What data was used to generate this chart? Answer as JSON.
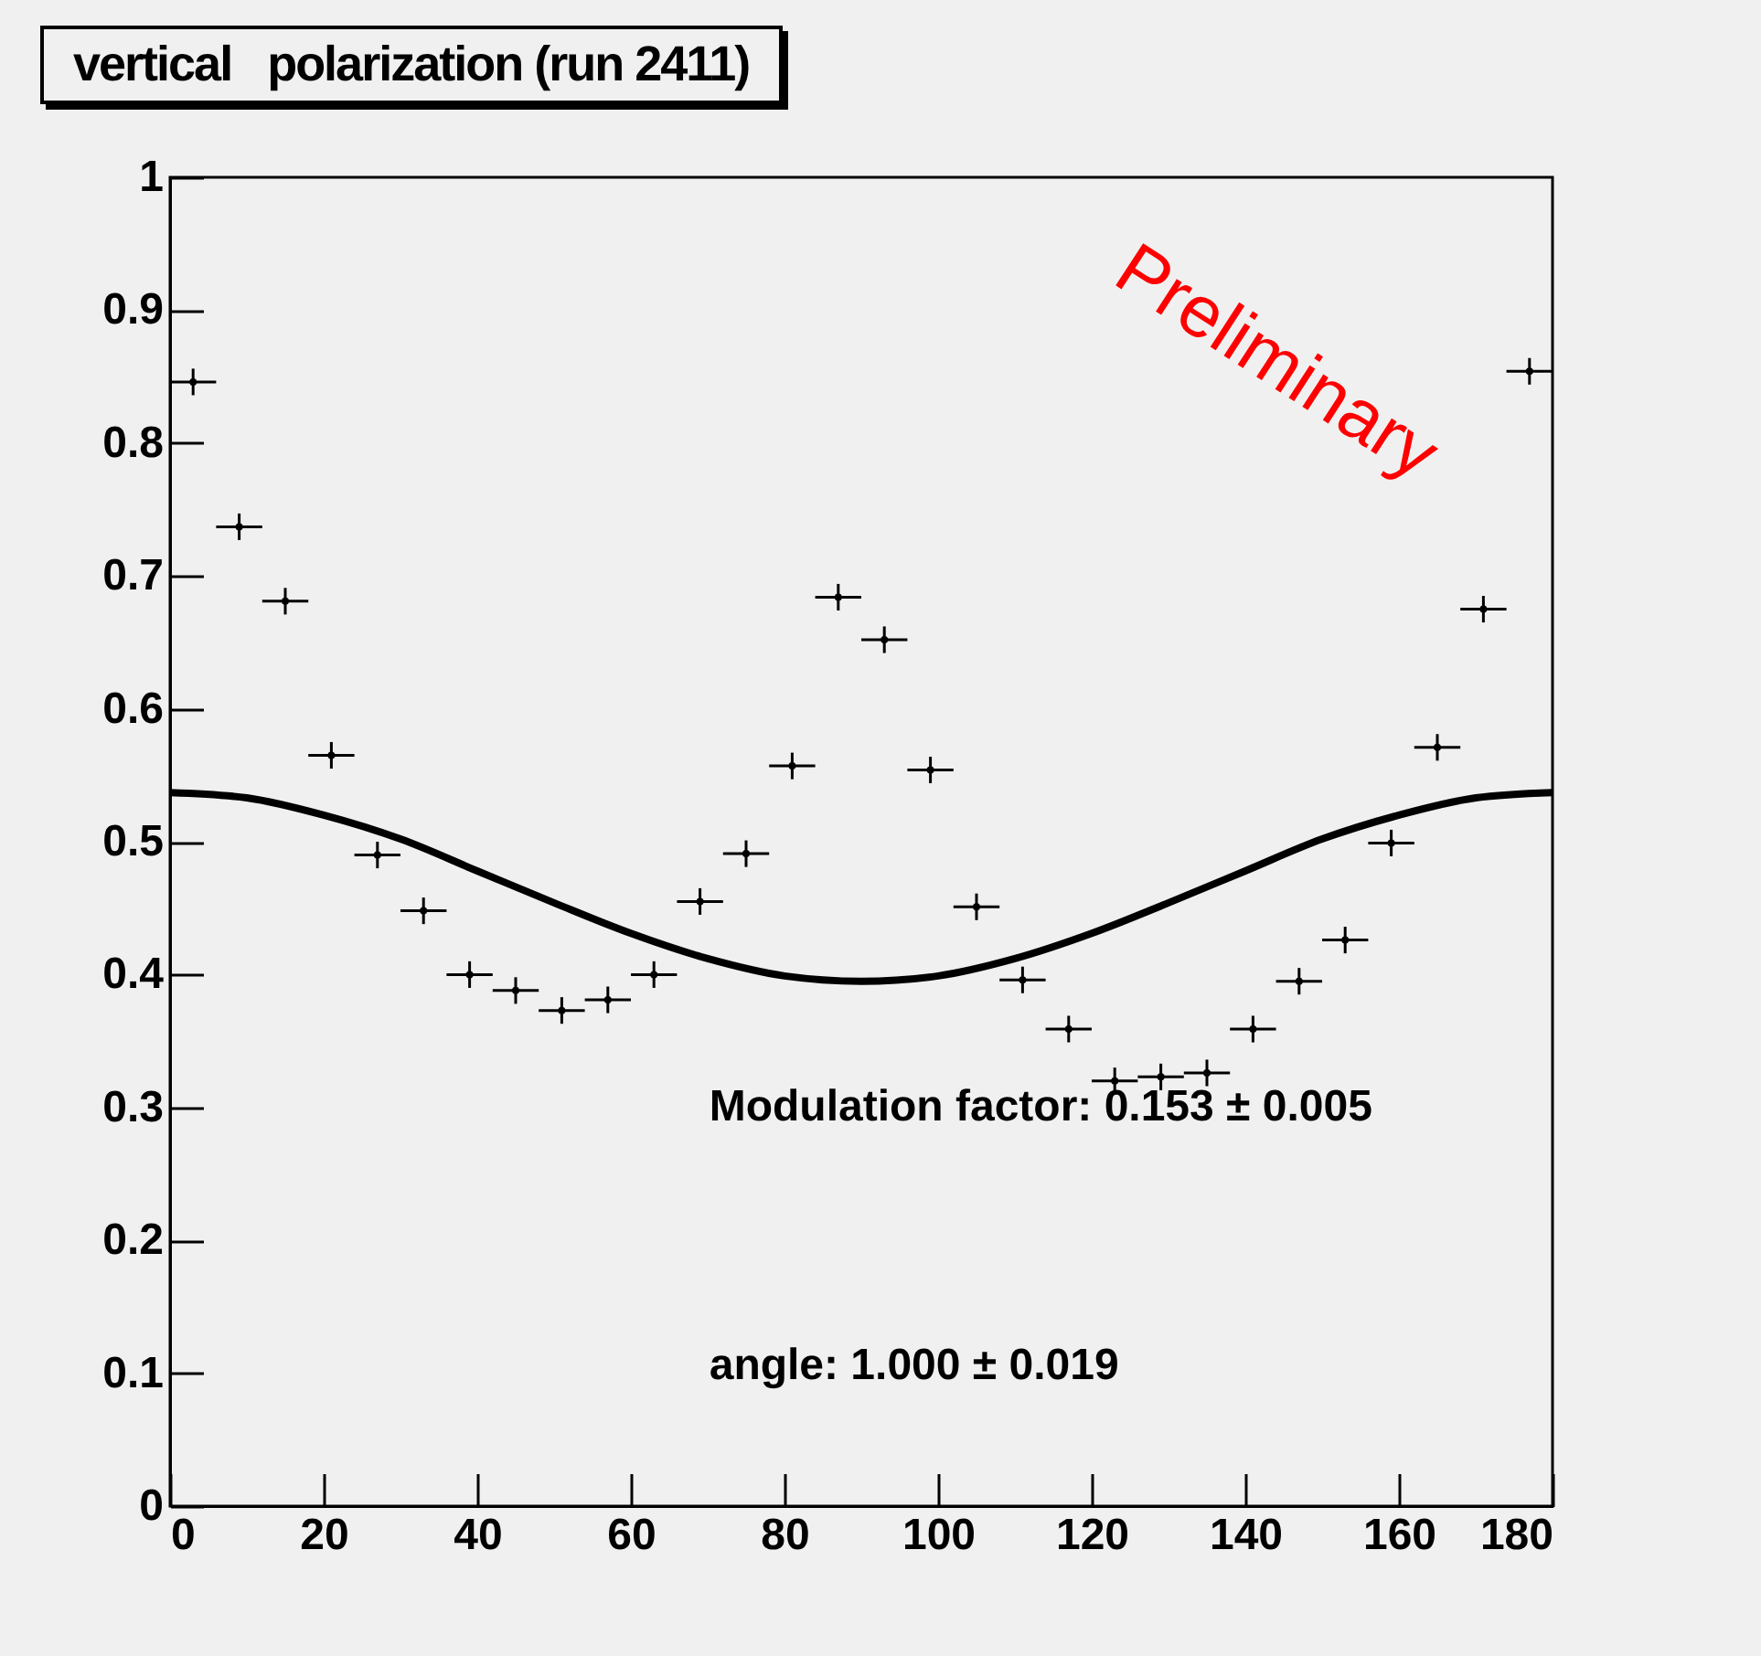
{
  "chart_data": {
    "type": "scatter",
    "title": "vertical   polarization (run 2411)",
    "xlim": [
      0,
      180
    ],
    "xticks": [
      0,
      20,
      40,
      60,
      80,
      100,
      120,
      140,
      160,
      180
    ],
    "ylim": [
      0,
      1
    ],
    "yticks": [
      0,
      0.1,
      0.2,
      0.3,
      0.4,
      0.5,
      0.6,
      0.7,
      0.8,
      0.9,
      1
    ],
    "grid": false,
    "annotations": [
      "Preliminary",
      "Modulation factor:  0.153 ±  0.005",
      "angle:  1.000 ±  0.019"
    ],
    "series": [
      {
        "color": "#000000",
        "x": [
          3,
          9,
          15,
          21,
          27,
          33,
          39,
          45,
          51,
          57,
          63,
          69,
          75,
          81,
          87,
          93,
          99,
          105,
          111,
          117,
          123,
          129,
          135,
          141,
          147,
          153,
          159,
          165,
          171,
          177
        ],
        "values": [
          0.846,
          0.737,
          0.681,
          0.565,
          0.49,
          0.448,
          0.4,
          0.388,
          0.373,
          0.381,
          0.4,
          0.455,
          0.491,
          0.557,
          0.684,
          0.652,
          0.554,
          0.451,
          0.396,
          0.359,
          0.32,
          0.323,
          0.326,
          0.359,
          0.395,
          0.426,
          0.499,
          0.571,
          0.675,
          0.854
        ],
        "errors": [
          0.01,
          0.01,
          0.01,
          0.01,
          0.01,
          0.01,
          0.01,
          0.01,
          0.01,
          0.01,
          0.01,
          0.01,
          0.01,
          0.01,
          0.01,
          0.01,
          0.01,
          0.01,
          0.01,
          0.01,
          0.01,
          0.01,
          0.01,
          0.01,
          0.01,
          0.01,
          0.01,
          0.01,
          0.01,
          0.01
        ],
        "xerrors": [
          3,
          3,
          3,
          3,
          3,
          3,
          3,
          3,
          3,
          3,
          3,
          3,
          3,
          3,
          3,
          3,
          3,
          3,
          3,
          3,
          3,
          3,
          3,
          3,
          3,
          3,
          3,
          3,
          3,
          3
        ]
      },
      {
        "type": "line",
        "color": "#000000",
        "x": [
          0,
          10,
          20,
          30,
          40,
          50,
          60,
          70,
          80,
          90,
          100,
          110,
          120,
          130,
          140,
          150,
          160,
          170,
          180
        ],
        "values": [
          0.537,
          0.533,
          0.52,
          0.502,
          0.478,
          0.454,
          0.431,
          0.412,
          0.399,
          0.395,
          0.399,
          0.412,
          0.431,
          0.454,
          0.478,
          0.502,
          0.52,
          0.533,
          0.537
        ]
      }
    ]
  }
}
